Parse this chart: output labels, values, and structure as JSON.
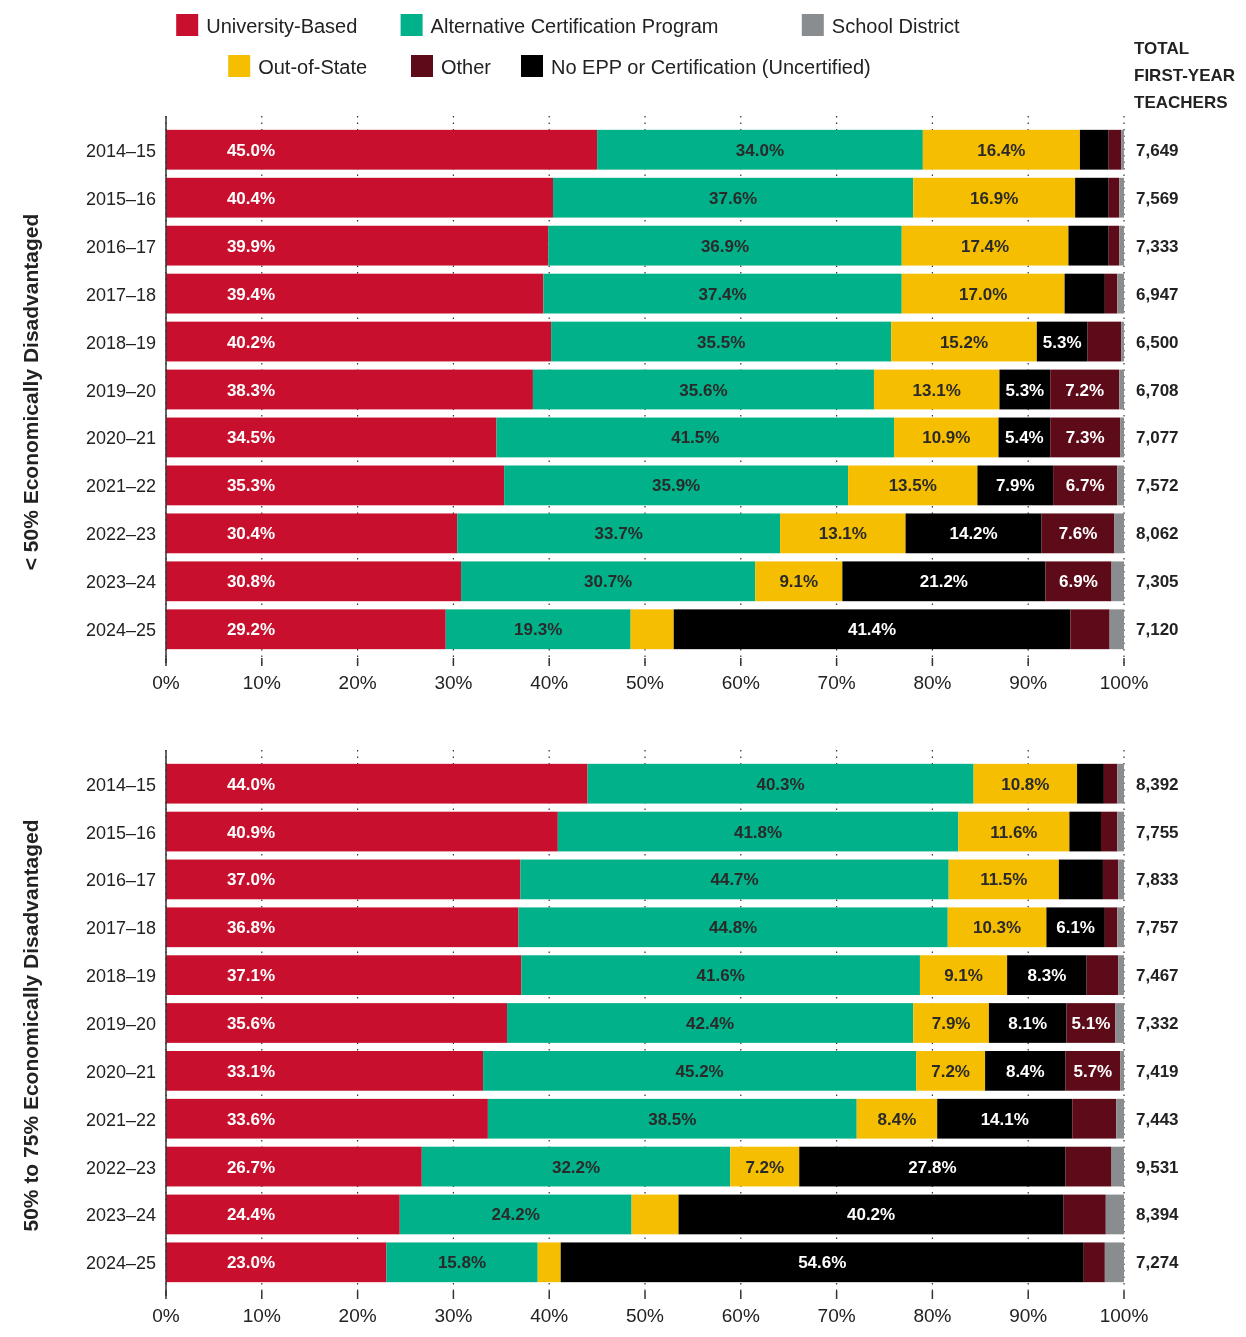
{
  "chart_data": [
    {
      "type": "bar",
      "orientation": "horizontal",
      "stacked": true,
      "ylabel": "< 50% Economically Disadvantaged",
      "categories": [
        "2014–15",
        "2015–16",
        "2016–17",
        "2017–18",
        "2018–19",
        "2019–20",
        "2020–21",
        "2021–22",
        "2022–23",
        "2023–24",
        "2024–25"
      ],
      "xlim": [
        0,
        100
      ],
      "xticks": [
        {
          "value": 0,
          "label": "0%"
        },
        {
          "value": 10,
          "label": "10%"
        },
        {
          "value": 20,
          "label": "20%"
        },
        {
          "value": 30,
          "label": "30%"
        },
        {
          "value": 40,
          "label": "40%"
        },
        {
          "value": 50,
          "label": "50%"
        },
        {
          "value": 60,
          "label": "60%"
        },
        {
          "value": 70,
          "label": "70%"
        },
        {
          "value": 80,
          "label": "80%"
        },
        {
          "value": 90,
          "label": "90%"
        },
        {
          "value": 100,
          "label": "100%"
        }
      ],
      "grid": "x",
      "legend": "top",
      "annotations": [
        "TOTAL FIRST-YEAR TEACHERS",
        "7,649",
        "7,569",
        "7,333",
        "6,947",
        "6,500",
        "6,708",
        "7,077",
        "7,572",
        "8,062",
        "7,305",
        "7,120"
      ],
      "series": [
        {
          "name": "University-Based",
          "color": "#c8102e",
          "values": [
            45.0,
            40.4,
            39.9,
            39.4,
            40.2,
            38.3,
            34.5,
            35.3,
            30.4,
            30.8,
            29.2
          ],
          "value_labels": [
            "45.0%",
            "40.4%",
            "39.9%",
            "39.4%",
            "40.2%",
            "38.3%",
            "34.5%",
            "35.3%",
            "30.4%",
            "30.8%",
            "29.2%"
          ]
        },
        {
          "name": "Alternative Certification Program",
          "color": "#00b189",
          "values": [
            34.0,
            37.6,
            36.9,
            37.4,
            35.5,
            35.6,
            41.5,
            35.9,
            33.7,
            30.7,
            19.3
          ],
          "value_labels": [
            "34.0%",
            "37.6%",
            "36.9%",
            "37.4%",
            "35.5%",
            "35.6%",
            "41.5%",
            "35.9%",
            "33.7%",
            "30.7%",
            "19.3%"
          ]
        },
        {
          "name": "Out-of-State",
          "color": "#f5be00",
          "values": [
            16.4,
            16.9,
            17.4,
            17.0,
            15.2,
            13.1,
            10.9,
            13.5,
            13.1,
            9.1,
            4.5
          ],
          "value_labels": [
            "16.4%",
            "16.9%",
            "17.4%",
            "17.0%",
            "15.2%",
            "13.1%",
            "10.9%",
            "13.5%",
            "13.1%",
            "9.1%",
            null
          ]
        },
        {
          "name": "No EPP or Certification (Uncertified)",
          "color": "#000000",
          "values": [
            3.0,
            3.5,
            4.2,
            4.2,
            5.3,
            5.3,
            5.4,
            7.9,
            14.2,
            21.2,
            41.4
          ],
          "value_labels": [
            null,
            null,
            null,
            null,
            "5.3%",
            "5.3%",
            "5.4%",
            "7.9%",
            "14.2%",
            "21.2%",
            "41.4%"
          ]
        },
        {
          "name": "Other",
          "color": "#5e0b19",
          "values": [
            1.3,
            1.1,
            1.1,
            1.3,
            3.5,
            7.2,
            7.3,
            6.7,
            7.6,
            6.9,
            4.1
          ],
          "value_labels": [
            null,
            null,
            null,
            null,
            null,
            "7.2%",
            "7.3%",
            "6.7%",
            "7.6%",
            "6.9%",
            null
          ]
        },
        {
          "name": "School District",
          "color": "#8a8d8f",
          "values": [
            0.3,
            0.5,
            0.5,
            0.7,
            0.3,
            0.5,
            0.4,
            0.7,
            1.0,
            1.3,
            1.5
          ]
        }
      ]
    },
    {
      "type": "bar",
      "orientation": "horizontal",
      "stacked": true,
      "ylabel": "50% to 75% Economically Disadvantaged",
      "categories": [
        "2014–15",
        "2015–16",
        "2016–17",
        "2017–18",
        "2018–19",
        "2019–20",
        "2020–21",
        "2021–22",
        "2022–23",
        "2023–24",
        "2024–25"
      ],
      "xlim": [
        0,
        100
      ],
      "xticks": [
        {
          "value": 0,
          "label": "0%"
        },
        {
          "value": 10,
          "label": "10%"
        },
        {
          "value": 20,
          "label": "20%"
        },
        {
          "value": 30,
          "label": "30%"
        },
        {
          "value": 40,
          "label": "40%"
        },
        {
          "value": 50,
          "label": "50%"
        },
        {
          "value": 60,
          "label": "60%"
        },
        {
          "value": 70,
          "label": "70%"
        },
        {
          "value": 80,
          "label": "80%"
        },
        {
          "value": 90,
          "label": "90%"
        },
        {
          "value": 100,
          "label": "100%"
        }
      ],
      "grid": "x",
      "annotations": [
        "8,392",
        "7,755",
        "7,833",
        "7,757",
        "7,467",
        "7,332",
        "7,419",
        "7,443",
        "9,531",
        "8,394",
        "7,274"
      ],
      "series": [
        {
          "name": "University-Based",
          "color": "#c8102e",
          "values": [
            44.0,
            40.9,
            37.0,
            36.8,
            37.1,
            35.6,
            33.1,
            33.6,
            26.7,
            24.4,
            23.0
          ],
          "value_labels": [
            "44.0%",
            "40.9%",
            "37.0%",
            "36.8%",
            "37.1%",
            "35.6%",
            "33.1%",
            "33.6%",
            "26.7%",
            "24.4%",
            "23.0%"
          ]
        },
        {
          "name": "Alternative Certification Program",
          "color": "#00b189",
          "values": [
            40.3,
            41.8,
            44.7,
            44.8,
            41.6,
            42.4,
            45.2,
            38.5,
            32.2,
            24.2,
            15.8
          ],
          "value_labels": [
            "40.3%",
            "41.8%",
            "44.7%",
            "44.8%",
            "41.6%",
            "42.4%",
            "45.2%",
            "38.5%",
            "32.2%",
            "24.2%",
            "15.8%"
          ]
        },
        {
          "name": "Out-of-State",
          "color": "#f5be00",
          "values": [
            10.8,
            11.6,
            11.5,
            10.3,
            9.1,
            7.9,
            7.2,
            8.4,
            7.2,
            4.9,
            2.4
          ],
          "value_labels": [
            "10.8%",
            "11.6%",
            "11.5%",
            "10.3%",
            "9.1%",
            "7.9%",
            "7.2%",
            "8.4%",
            "7.2%",
            null,
            null
          ]
        },
        {
          "name": "No EPP or Certification (Uncertified)",
          "color": "#000000",
          "values": [
            2.8,
            3.3,
            4.6,
            6.1,
            8.3,
            8.1,
            8.4,
            14.1,
            27.8,
            40.2,
            54.6
          ],
          "value_labels": [
            null,
            null,
            null,
            "6.1%",
            "8.3%",
            "8.1%",
            "8.4%",
            "14.1%",
            "27.8%",
            "40.2%",
            "54.6%"
          ]
        },
        {
          "name": "Other",
          "color": "#5e0b19",
          "values": [
            1.4,
            1.7,
            1.6,
            1.3,
            3.3,
            5.1,
            5.7,
            4.6,
            4.8,
            4.4,
            2.2
          ],
          "value_labels": [
            null,
            null,
            null,
            null,
            null,
            "5.1%",
            "5.7%",
            null,
            null,
            null,
            null
          ]
        },
        {
          "name": "School District",
          "color": "#8a8d8f",
          "values": [
            0.7,
            0.7,
            0.6,
            0.7,
            0.6,
            0.9,
            0.4,
            0.8,
            1.3,
            1.9,
            2.0
          ]
        }
      ]
    }
  ]
}
